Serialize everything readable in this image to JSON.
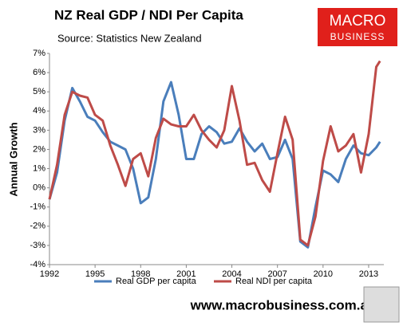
{
  "chart_data": {
    "type": "line",
    "title": "NZ Real GDP / NDI Per Capita",
    "subtitle": "Source: Statistics New Zealand",
    "ylabel": "Annual Growth",
    "logo": [
      "MACRO",
      "BUSINESS"
    ],
    "footer": "www.macrobusiness.com.au",
    "x": [
      1992.0,
      1992.5,
      1993.0,
      1993.5,
      1994.0,
      1994.5,
      1995.0,
      1995.5,
      1996.0,
      1996.5,
      1997.0,
      1997.5,
      1998.0,
      1998.5,
      1999.0,
      1999.5,
      2000.0,
      2000.5,
      2001.0,
      2001.5,
      2002.0,
      2002.5,
      2003.0,
      2003.5,
      2004.0,
      2004.5,
      2005.0,
      2005.5,
      2006.0,
      2006.5,
      2007.0,
      2007.5,
      2008.0,
      2008.5,
      2009.0,
      2009.5,
      2010.0,
      2010.5,
      2011.0,
      2011.5,
      2012.0,
      2012.5,
      2013.0,
      2013.5,
      2013.75
    ],
    "series": [
      {
        "name": "Real GDP per capita",
        "color": "#4a7ebb",
        "values": [
          -0.6,
          0.8,
          3.5,
          5.2,
          4.5,
          3.7,
          3.5,
          2.9,
          2.4,
          2.2,
          2.0,
          1.0,
          -0.8,
          -0.5,
          1.5,
          4.5,
          5.5,
          3.8,
          1.5,
          1.5,
          2.8,
          3.2,
          2.9,
          2.3,
          2.4,
          3.1,
          2.4,
          1.9,
          2.3,
          1.5,
          1.6,
          2.5,
          1.5,
          -2.8,
          -3.1,
          -1.0,
          0.9,
          0.7,
          0.3,
          1.5,
          2.2,
          1.8,
          1.7,
          2.1,
          2.4
        ]
      },
      {
        "name": "Real NDI per capita",
        "color": "#be4b48",
        "values": [
          -0.6,
          1.2,
          3.8,
          5.0,
          4.8,
          4.7,
          3.8,
          3.5,
          2.2,
          1.2,
          0.1,
          1.5,
          1.8,
          0.6,
          2.6,
          3.6,
          3.3,
          3.2,
          3.2,
          3.8,
          3.0,
          2.5,
          2.1,
          3.0,
          5.3,
          3.5,
          1.2,
          1.3,
          0.4,
          -0.2,
          1.8,
          3.7,
          2.5,
          -2.7,
          -3.0,
          -1.5,
          1.4,
          3.2,
          1.9,
          2.2,
          2.8,
          0.8,
          2.8,
          6.3,
          6.6
        ]
      }
    ],
    "xlim": [
      1992,
      2014
    ],
    "xticks": [
      1992,
      1995,
      1998,
      2001,
      2004,
      2007,
      2010,
      2013
    ],
    "ylim": [
      -4,
      7
    ],
    "yticks": [
      {
        "value": -4,
        "label": "-4%"
      },
      {
        "value": -3,
        "label": "-3%"
      },
      {
        "value": -2,
        "label": "-2%"
      },
      {
        "value": -1,
        "label": "-1%"
      },
      {
        "value": 0,
        "label": "0%"
      },
      {
        "value": 1,
        "label": "1%"
      },
      {
        "value": 2,
        "label": "2%"
      },
      {
        "value": 3,
        "label": "3%"
      },
      {
        "value": 4,
        "label": "4%"
      },
      {
        "value": 5,
        "label": "5%"
      },
      {
        "value": 6,
        "label": "6%"
      },
      {
        "value": 7,
        "label": "7%"
      }
    ],
    "grid": false
  }
}
